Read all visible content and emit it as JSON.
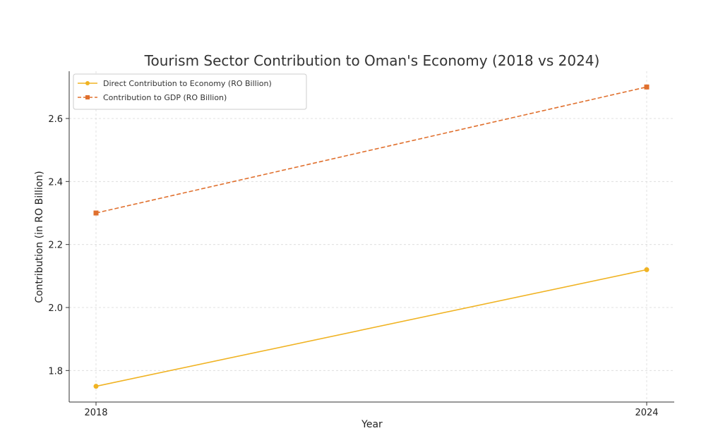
{
  "chart_data": {
    "type": "line",
    "title": "Tourism Sector Contribution to Oman's Economy (2018 vs 2024)",
    "xlabel": "Year",
    "ylabel": "Contribution (in RO Billion)",
    "x": [
      "2018",
      "2024"
    ],
    "ylim": [
      1.7,
      2.75
    ],
    "yticks": [
      1.8,
      2.0,
      2.2,
      2.4,
      2.6
    ],
    "yticklabels": [
      "1.8",
      "2.0",
      "2.2",
      "2.4",
      "2.6"
    ],
    "grid": true,
    "legend_position": "top-left",
    "series": [
      {
        "name": "Direct Contribution to Economy (RO Billion)",
        "values": [
          1.75,
          2.12
        ],
        "color": "#f0b323",
        "marker": "circle",
        "linestyle": "solid"
      },
      {
        "name": "Contribution to GDP (RO Billion)",
        "values": [
          2.3,
          2.7
        ],
        "color": "#e0702e",
        "marker": "square",
        "linestyle": "dashed"
      }
    ]
  }
}
